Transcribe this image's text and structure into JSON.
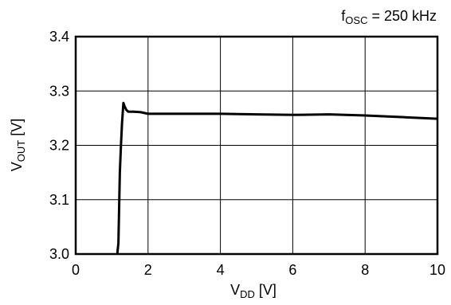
{
  "chart_data": {
    "type": "line",
    "annotation": {
      "main": "f",
      "sub": "OSC",
      "rest": " = 250 kHz"
    },
    "xlabel": {
      "main": "V",
      "sub": "DD",
      "rest": " [V]"
    },
    "ylabel": {
      "main": "V",
      "sub": "OUT",
      "rest": " [V]"
    },
    "xlim": [
      0,
      10
    ],
    "ylim": [
      3.0,
      3.4
    ],
    "xticks": [
      0,
      2,
      4,
      6,
      8,
      10
    ],
    "xtick_labels": [
      "0",
      "2",
      "4",
      "6",
      "8",
      "10"
    ],
    "yticks": [
      3.0,
      3.1,
      3.2,
      3.3,
      3.4
    ],
    "ytick_labels": [
      "3.0",
      "3.1",
      "3.2",
      "3.3",
      "3.4"
    ],
    "grid": true,
    "series": [
      {
        "color": "#000000",
        "x": [
          1.15,
          1.18,
          1.22,
          1.25,
          1.28,
          1.32,
          1.35,
          1.4,
          1.45,
          1.5,
          1.6,
          1.8,
          2.0,
          3.0,
          4.0,
          5.0,
          6.0,
          7.0,
          8.0,
          9.0,
          10.0
        ],
        "y": [
          3.0,
          3.02,
          3.15,
          3.2,
          3.24,
          3.278,
          3.272,
          3.265,
          3.262,
          3.262,
          3.262,
          3.261,
          3.258,
          3.258,
          3.258,
          3.257,
          3.256,
          3.257,
          3.255,
          3.252,
          3.249
        ]
      }
    ]
  }
}
